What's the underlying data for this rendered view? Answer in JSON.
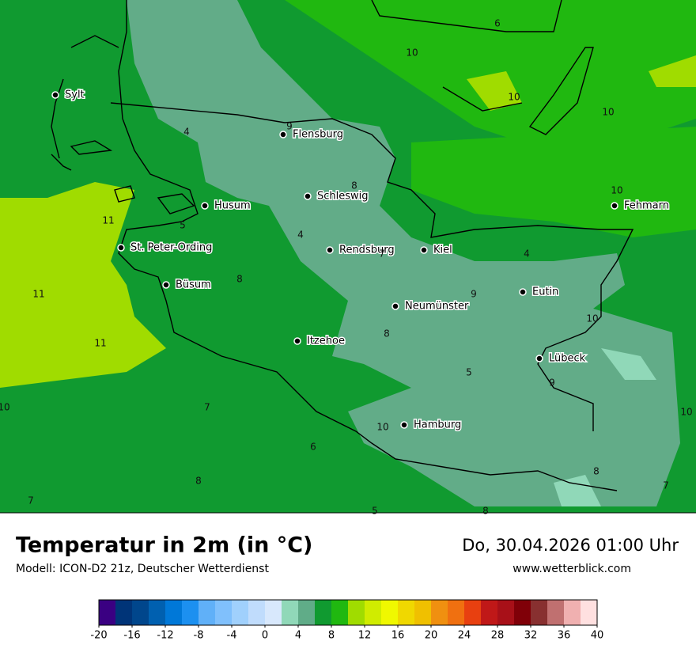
{
  "map": {
    "cities": [
      "Sylt",
      "Flensburg",
      "Schleswig",
      "Husum",
      "Fehmarn",
      "St. Peter-Ording",
      "Rendsburg",
      "Kiel",
      "Büsum",
      "Eutin",
      "Neumünster",
      "Itzehoe",
      "Lübeck",
      "Hamburg"
    ],
    "contour_labels": [
      6,
      10,
      10,
      10,
      4,
      9,
      8,
      10,
      11,
      5,
      4,
      7,
      4,
      8,
      11,
      9,
      10,
      8,
      11,
      5,
      9,
      10,
      7,
      10,
      10,
      6,
      8,
      8,
      7,
      7,
      5,
      8
    ]
  },
  "footer": {
    "title": "Temperatur in 2m (in °C)",
    "model": "Modell: ICON-D2 21z, Deutscher Wetterdienst",
    "datetime": "Do, 30.04.2026 01:00 Uhr",
    "website": "www.wetterblick.com"
  },
  "legend": {
    "colors": [
      "#3a0082",
      "#003478",
      "#00468c",
      "#0060b0",
      "#0078d8",
      "#1c90f0",
      "#60b0f8",
      "#80c0fc",
      "#a0d0fc",
      "#c0dcfc",
      "#d8e8fc",
      "#90d8b8",
      "#60ac88",
      "#109a30",
      "#20b810",
      "#a0dc00",
      "#d0ec00",
      "#f0f800",
      "#f0d800",
      "#f0c000",
      "#f09010",
      "#f07010",
      "#e84010",
      "#c01818",
      "#a81018",
      "#800008",
      "#883030",
      "#c07070",
      "#f0b0b0",
      "#ffe0e0"
    ],
    "ticks": [
      -20,
      -16,
      -12,
      -8,
      -4,
      0,
      4,
      8,
      12,
      16,
      20,
      24,
      28,
      32,
      36,
      40
    ]
  }
}
